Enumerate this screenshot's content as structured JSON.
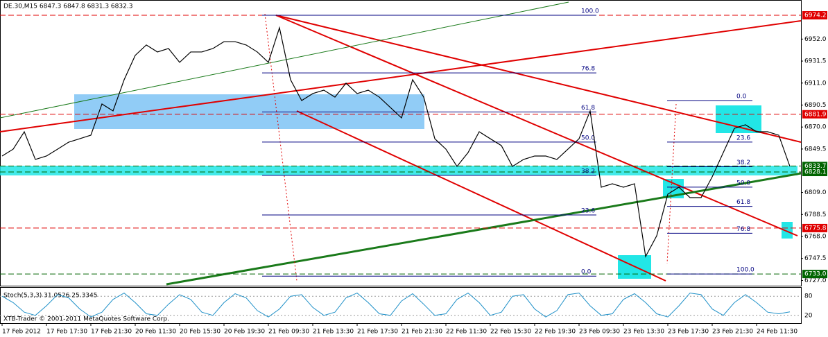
{
  "chart_data": {
    "type": "line",
    "title": "DE.30,M15  6847.3 6847.8 6831.3 6832.3",
    "footer": "XTB-Trader © 2001-2011 MetaQuotes Software Corp.",
    "categories": [
      "17 Feb 2012",
      null,
      null,
      null,
      "17 Feb 17:30",
      null,
      null,
      null,
      "17 Feb 21:30",
      null,
      null,
      null,
      "20 Feb 11:30",
      null,
      null,
      null,
      "20 Feb 15:30",
      null,
      null,
      null,
      "20 Feb 19:30",
      null,
      null,
      null,
      "21 Feb 09:30",
      null,
      null,
      null,
      "21 Feb 13:30",
      null,
      null,
      null,
      "21 Feb 17:30",
      null,
      null,
      null,
      "21 Feb 21:30",
      null,
      null,
      null,
      "22 Feb 11:30",
      null,
      null,
      null,
      "22 Feb 15:30",
      null,
      null,
      null,
      "22 Feb 19:30",
      null,
      null,
      null,
      "23 Feb 09:30",
      null,
      null,
      null,
      "23 Feb 13:30",
      null,
      null,
      null,
      "23 Feb 17:30",
      null,
      null,
      null,
      "23 Feb 21:30",
      null,
      null,
      null,
      "24 Feb 11:30",
      null,
      null,
      null
    ],
    "series": [
      {
        "color": "#000000",
        "values": [
          6843.0,
          6849.4,
          6865.6,
          6839.8,
          6843.0,
          6849.4,
          6855.9,
          6859.1,
          6862.4,
          6891.5,
          6885.0,
          6914.1,
          6936.8,
          6946.5,
          6940.0,
          6943.2,
          6930.3,
          6940.0,
          6940.0,
          6943.2,
          6949.6,
          6949.6,
          6946.5,
          6940.0,
          6930.3,
          6962.6,
          6914.1,
          6894.7,
          6901.2,
          6904.4,
          6897.9,
          6910.9,
          6901.2,
          6904.4,
          6897.9,
          6888.2,
          6878.5,
          6914.1,
          6897.9,
          6859.1,
          6849.4,
          6833.3,
          6846.2,
          6865.6,
          6859.1,
          6852.7,
          6833.3,
          6839.8,
          6843.0,
          6843.0,
          6839.8,
          6849.4,
          6859.1,
          6885.0,
          6813.9,
          6817.1,
          6813.9,
          6817.1,
          6749.3,
          6768.6,
          6807.4,
          6813.9,
          6804.2,
          6804.2,
          6823.6,
          6846.2,
          6868.8,
          6872.1,
          6865.6,
          6865.6,
          6862.4,
          6833.3
        ]
      }
    ],
    "ylim": [
      6722.1,
      6985.2
    ],
    "yticks": [
      {
        "value": 6727.0,
        "label": "6727.0"
      },
      {
        "value": 6747.5,
        "label": "6747.5"
      },
      {
        "value": 6768.0,
        "label": "6768.0"
      },
      {
        "value": 6788.5,
        "label": "6788.5"
      },
      {
        "value": 6809.0,
        "label": "6809.0"
      },
      {
        "value": 6849.5,
        "label": "6849.5"
      },
      {
        "value": 6870.0,
        "label": "6870.0"
      },
      {
        "value": 6890.5,
        "label": "6890.5"
      },
      {
        "value": 6911.0,
        "label": "6911.0"
      },
      {
        "value": 6931.5,
        "label": "6931.5"
      },
      {
        "value": 6952.0,
        "label": "6952.0"
      }
    ],
    "levels": [
      {
        "value": 6974.2,
        "label": "6974.2",
        "color": "#e00000"
      },
      {
        "value": 6881.9,
        "label": "6881.9",
        "color": "#e00000"
      },
      {
        "value": 6833.7,
        "label": "6833.7",
        "color": "#006400"
      },
      {
        "value": 6828.1,
        "label": "6828.1",
        "color": "#006400"
      },
      {
        "value": 6775.8,
        "label": "6775.8",
        "color": "#e00000"
      },
      {
        "value": 6733.0,
        "label": "6733.0",
        "color": "#006400"
      }
    ],
    "fibs": [
      {
        "levels": [
          {
            "value": 6974.2,
            "label": "100.0"
          },
          {
            "value": 6920.5,
            "label": "76.8"
          },
          {
            "value": 6884.0,
            "label": "61.8"
          },
          {
            "value": 6856.0,
            "label": "50.0"
          },
          {
            "value": 6825.0,
            "label": "38.2"
          },
          {
            "value": 6788.0,
            "label": "23.6"
          },
          {
            "value": 6731.0,
            "label": "0.0"
          }
        ]
      },
      {
        "levels": [
          {
            "value": 6894.7,
            "label": "0.0"
          },
          {
            "value": 6856.0,
            "label": "23.6"
          },
          {
            "value": 6833.0,
            "label": "38.2"
          },
          {
            "value": 6814.0,
            "label": "50.0"
          },
          {
            "value": 6796.0,
            "label": "61.8"
          },
          {
            "value": 6771.0,
            "label": "76.8"
          },
          {
            "value": 6733.0,
            "label": "100.0"
          }
        ]
      }
    ],
    "stoch": {
      "label": "Stoch(5,3,3) 31.0526 25.3345",
      "color": "#1e90c8",
      "values": [
        80,
        60,
        30,
        20,
        50,
        85,
        75,
        40,
        15,
        30,
        70,
        90,
        60,
        25,
        20,
        55,
        85,
        70,
        30,
        20,
        60,
        88,
        75,
        35,
        15,
        40,
        80,
        85,
        45,
        20,
        30,
        75,
        90,
        60,
        25,
        20,
        65,
        88,
        55,
        20,
        25,
        70,
        90,
        60,
        20,
        30,
        80,
        85,
        40,
        15,
        35,
        85,
        90,
        50,
        20,
        25,
        70,
        88,
        60,
        25,
        15,
        50,
        90,
        85,
        40,
        20,
        60,
        85,
        60,
        30,
        25,
        31
      ],
      "ylim": [
        0,
        100
      ],
      "yticks": [
        20,
        80
      ]
    }
  }
}
